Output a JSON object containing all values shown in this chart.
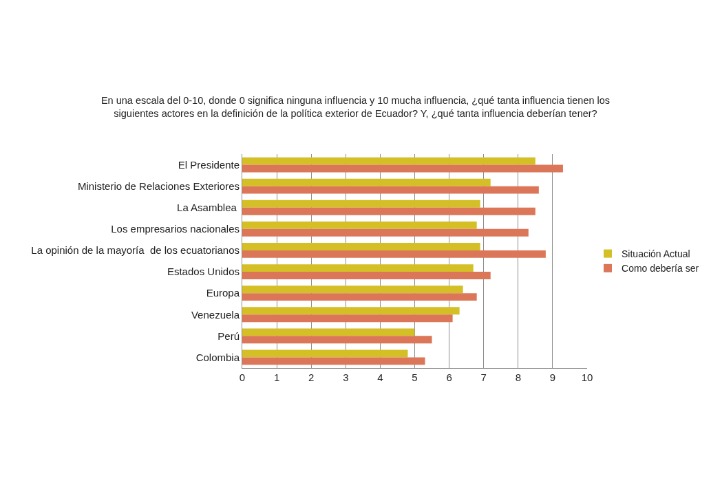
{
  "chart_data": {
    "type": "bar",
    "orientation": "horizontal",
    "title": "En una escala del 0-10, donde 0 significa ninguna influencia y 10 mucha influencia, ¿qué tanta influencia tienen los\nsiguientes actores en la definición de la política exterior de Ecuador? Y, ¿qué tanta influencia deberían tener?",
    "categories": [
      "El Presidente",
      "Ministerio de Relaciones Exteriores",
      "La Asamblea ",
      "Los empresarios nacionales",
      "La opinión de la mayoría  de los ecuatorianos",
      "Estados Unidos",
      "Europa",
      "Venezuela",
      "Perú",
      "Colombia"
    ],
    "series": [
      {
        "name": "Situación Actual",
        "color": "#d4c026",
        "values": [
          8.5,
          7.2,
          6.9,
          6.8,
          6.9,
          6.7,
          6.4,
          6.3,
          5.0,
          4.8
        ]
      },
      {
        "name": "Como debería ser",
        "color": "#dc7658",
        "values": [
          9.3,
          8.6,
          8.5,
          8.3,
          8.8,
          7.2,
          6.8,
          6.1,
          5.5,
          5.3
        ]
      }
    ],
    "xlim": [
      0,
      10
    ],
    "xticks": [
      0,
      1,
      2,
      3,
      4,
      5,
      6,
      7,
      8,
      9,
      10
    ],
    "grid": "x",
    "legend": "right"
  }
}
